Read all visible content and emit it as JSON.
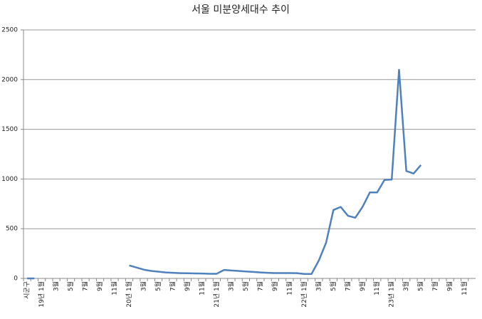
{
  "chart_data": {
    "type": "line",
    "title": "서울 미분양세대수 추이",
    "categories": [
      "시군구",
      null,
      "19년 1월",
      null,
      "3월",
      null,
      "5월",
      null,
      "7월",
      null,
      "9월",
      null,
      "11월",
      null,
      "20년 1월",
      null,
      "3월",
      null,
      "5월",
      null,
      "7월",
      null,
      "9월",
      null,
      "11월",
      null,
      "21년 1월",
      null,
      "3월",
      null,
      "5월",
      null,
      "7월",
      null,
      "9월",
      null,
      "11월",
      null,
      "22년 1월",
      null,
      "3월",
      null,
      "5월",
      null,
      "7월",
      null,
      "9월",
      null,
      "11월",
      null,
      "23년 1월",
      null,
      "3월",
      null,
      "5월",
      null,
      "7월",
      null,
      "9월",
      null,
      "11월",
      null
    ],
    "series": [
      {
        "color": "#4f81bd",
        "values": [
          0,
          0,
          null,
          null,
          null,
          null,
          null,
          null,
          null,
          null,
          null,
          null,
          null,
          null,
          130,
          110,
          88,
          75,
          68,
          60,
          56,
          53,
          52,
          50,
          49,
          47,
          47,
          85,
          80,
          75,
          70,
          65,
          60,
          56,
          54,
          54,
          54,
          53,
          45,
          45,
          180,
          360,
          688,
          719,
          630,
          610,
          720,
          865,
          865,
          990,
          995,
          2099,
          1080,
          1055,
          1140,
          null,
          null,
          null,
          null,
          null,
          null,
          null
        ]
      }
    ],
    "ylim": [
      0,
      2500
    ],
    "yticks": [
      0,
      500,
      1000,
      1500,
      2000,
      2500
    ],
    "grid": true
  }
}
